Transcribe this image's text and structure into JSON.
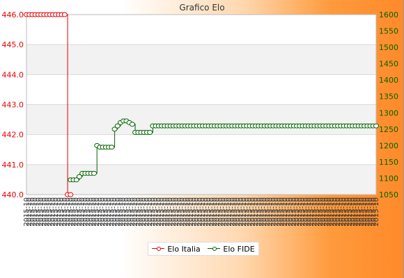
{
  "chart_data": {
    "type": "line",
    "title": "Grafico Elo",
    "x_tick_label": "2015-10",
    "x_tick_count": 120,
    "legend": {
      "placement": "bottom"
    },
    "grid": {
      "horizontal": true,
      "alternating_bands": true
    },
    "left_axis": {
      "ylim": [
        440.0,
        446.0
      ],
      "ticks": [
        "440.0",
        "441.0",
        "442.0",
        "443.0",
        "444.0",
        "445.0",
        "446.0"
      ],
      "color": "#e60000"
    },
    "right_axis": {
      "ylim": [
        1050,
        1600
      ],
      "ticks": [
        "1050",
        "1100",
        "1150",
        "1200",
        "1250",
        "1300",
        "1350",
        "1400",
        "1450",
        "1500",
        "1550",
        "1600"
      ],
      "color": "#006400"
    },
    "series": [
      {
        "name": "Elo Italia",
        "axis": "left",
        "color": "#e60000",
        "values": [
          446,
          446,
          446,
          446,
          446,
          446,
          446,
          446,
          446,
          446,
          446,
          446,
          446,
          446,
          440,
          440
        ]
      },
      {
        "name": "Elo FIDE",
        "axis": "right",
        "color": "#006400",
        "start_index": 15,
        "values": [
          1095,
          1095,
          1095,
          1105,
          1115,
          1115,
          1115,
          1115,
          1115,
          1200,
          1195,
          1195,
          1195,
          1195,
          1195,
          1250,
          1260,
          1270,
          1275,
          1275,
          1270,
          1265,
          1240,
          1240,
          1240,
          1240,
          1240,
          1240,
          1260,
          1260,
          1260,
          1260,
          1260,
          1260,
          1260,
          1260,
          1260,
          1260,
          1260,
          1260,
          1260,
          1260,
          1260,
          1260,
          1260,
          1260,
          1260,
          1260,
          1260,
          1260,
          1260,
          1260,
          1260,
          1260,
          1260,
          1260,
          1260,
          1260,
          1260,
          1260,
          1260,
          1260,
          1260,
          1260,
          1260,
          1260,
          1260,
          1260,
          1260,
          1260,
          1260,
          1260,
          1260,
          1260,
          1260,
          1260,
          1260,
          1260,
          1260,
          1260,
          1260,
          1260,
          1260,
          1260,
          1260,
          1260,
          1260,
          1260,
          1260,
          1260,
          1260,
          1260,
          1260,
          1260,
          1260,
          1260,
          1260,
          1260,
          1260,
          1260,
          1260,
          1260,
          1260,
          1260,
          1260
        ]
      }
    ]
  }
}
